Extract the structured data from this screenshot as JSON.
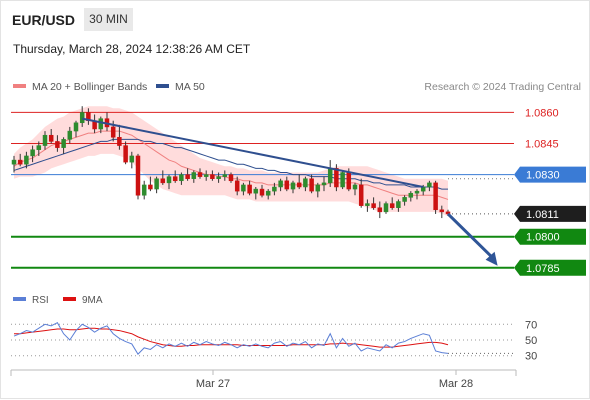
{
  "header": {
    "symbol": "EUR/USD",
    "timeframe": "30 MIN"
  },
  "datetime": "Thursday, March 28, 2024 12:38:26 AM CET",
  "legend": {
    "items": [
      {
        "label": "MA 20 + Bollinger Bands",
        "color": "#f08080"
      },
      {
        "label": "MA 50",
        "color": "#2f4f8f"
      }
    ],
    "credit": "Research © 2024 Trading Central"
  },
  "colors": {
    "bull": "#2e8b2e",
    "bear": "#cc1111",
    "band": "#ffd6d6",
    "ma20": "#f08080",
    "ma50": "#2f4f8f",
    "resistance": "#dd2222",
    "pivot": "#3a7bd5",
    "support": "#118811",
    "trend": "#2f4f8f",
    "arrow": "#2f5597",
    "rsi": "#5b7fd6",
    "rsi_ma": "#dd1111"
  },
  "chart_data": [
    {
      "type": "candlestick",
      "title": "",
      "ylim": [
        1.0782,
        1.0866
      ],
      "y_ticks": [
        1.086,
        1.0845,
        1.083,
        1.0811,
        1.08,
        1.0785
      ],
      "x_ticks": [
        "Mar 27",
        "Mar 28"
      ],
      "current_price": 1.0811,
      "levels": [
        {
          "value": 1.086,
          "label": "1.0860",
          "kind": "resistance"
        },
        {
          "value": 1.0845,
          "label": "1.0845",
          "kind": "resistance"
        },
        {
          "value": 1.083,
          "label": "1.0830",
          "kind": "pivot"
        },
        {
          "value": 1.0811,
          "label": "1.0811",
          "kind": "current"
        },
        {
          "value": 1.08,
          "label": "1.0800",
          "kind": "support"
        },
        {
          "value": 1.0785,
          "label": "1.0785",
          "kind": "support"
        }
      ],
      "candles": [
        [
          1.0835,
          1.0839,
          1.0831,
          1.0837
        ],
        [
          1.0837,
          1.084,
          1.0834,
          1.0835
        ],
        [
          1.0835,
          1.0841,
          1.0833,
          1.0839
        ],
        [
          1.0839,
          1.0844,
          1.0836,
          1.0842
        ],
        [
          1.0842,
          1.0846,
          1.0839,
          1.0844
        ],
        [
          1.0844,
          1.0851,
          1.0842,
          1.0849
        ],
        [
          1.0849,
          1.0852,
          1.0845,
          1.0846
        ],
        [
          1.0846,
          1.0849,
          1.0841,
          1.0843
        ],
        [
          1.0843,
          1.0848,
          1.084,
          1.0847
        ],
        [
          1.0847,
          1.0853,
          1.0845,
          1.0851
        ],
        [
          1.0851,
          1.0856,
          1.0848,
          1.0855
        ],
        [
          1.0855,
          1.0863,
          1.0853,
          1.086
        ],
        [
          1.086,
          1.0862,
          1.0854,
          1.0856
        ],
        [
          1.0856,
          1.0859,
          1.085,
          1.0852
        ],
        [
          1.0852,
          1.0858,
          1.085,
          1.0857
        ],
        [
          1.0857,
          1.086,
          1.0851,
          1.0853
        ],
        [
          1.0853,
          1.0856,
          1.0846,
          1.0848
        ],
        [
          1.0848,
          1.0854,
          1.0842,
          1.0844
        ],
        [
          1.0844,
          1.0846,
          1.0835,
          1.0836
        ],
        [
          1.0836,
          1.0841,
          1.0833,
          1.0839
        ],
        [
          1.0839,
          1.084,
          1.0818,
          1.082
        ],
        [
          1.082,
          1.0827,
          1.0818,
          1.0825
        ],
        [
          1.0825,
          1.0829,
          1.0822,
          1.0823
        ],
        [
          1.0823,
          1.0829,
          1.0821,
          1.0828
        ],
        [
          1.0828,
          1.0832,
          1.0825,
          1.0826
        ],
        [
          1.0826,
          1.083,
          1.0823,
          1.0829
        ],
        [
          1.0829,
          1.0832,
          1.0826,
          1.0827
        ],
        [
          1.0827,
          1.0831,
          1.0825,
          1.083
        ],
        [
          1.083,
          1.0833,
          1.0827,
          1.0828
        ],
        [
          1.0828,
          1.0832,
          1.0826,
          1.0831
        ],
        [
          1.0831,
          1.0833,
          1.0828,
          1.0829
        ],
        [
          1.0829,
          1.0832,
          1.0827,
          1.083
        ],
        [
          1.083,
          1.0832,
          1.0827,
          1.0828
        ],
        [
          1.0828,
          1.0831,
          1.0826,
          1.0829
        ],
        [
          1.0829,
          1.0832,
          1.0827,
          1.083
        ],
        [
          1.083,
          1.0831,
          1.0826,
          1.0827
        ],
        [
          1.0827,
          1.0829,
          1.082,
          1.0822
        ],
        [
          1.0822,
          1.0826,
          1.082,
          1.0825
        ],
        [
          1.0825,
          1.0827,
          1.082,
          1.0821
        ],
        [
          1.0821,
          1.0824,
          1.0818,
          1.0823
        ],
        [
          1.0823,
          1.0825,
          1.0819,
          1.082
        ],
        [
          1.082,
          1.0823,
          1.0818,
          1.0822
        ],
        [
          1.0822,
          1.0826,
          1.082,
          1.0824
        ],
        [
          1.0824,
          1.0828,
          1.0822,
          1.0827
        ],
        [
          1.0827,
          1.0829,
          1.0822,
          1.0823
        ],
        [
          1.0823,
          1.0827,
          1.0821,
          1.0826
        ],
        [
          1.0826,
          1.083,
          1.0823,
          1.0824
        ],
        [
          1.0824,
          1.0829,
          1.0822,
          1.0828
        ],
        [
          1.0828,
          1.083,
          1.0821,
          1.0822
        ],
        [
          1.0822,
          1.0826,
          1.0819,
          1.0825
        ],
        [
          1.0825,
          1.0829,
          1.0822,
          1.0826
        ],
        [
          1.0826,
          1.0837,
          1.0824,
          1.0833
        ],
        [
          1.0833,
          1.0835,
          1.0822,
          1.0824
        ],
        [
          1.0824,
          1.0832,
          1.0823,
          1.0831
        ],
        [
          1.0831,
          1.0833,
          1.0822,
          1.0823
        ],
        [
          1.0823,
          1.0826,
          1.082,
          1.0825
        ],
        [
          1.0825,
          1.0828,
          1.0814,
          1.0815
        ],
        [
          1.0815,
          1.0818,
          1.0812,
          1.0816
        ],
        [
          1.0816,
          1.0819,
          1.0813,
          1.0814
        ],
        [
          1.0814,
          1.0817,
          1.0809,
          1.0812
        ],
        [
          1.0812,
          1.0817,
          1.0811,
          1.0816
        ],
        [
          1.0816,
          1.0819,
          1.0813,
          1.0814
        ],
        [
          1.0814,
          1.0818,
          1.0812,
          1.0817
        ],
        [
          1.0817,
          1.082,
          1.0815,
          1.0819
        ],
        [
          1.0819,
          1.0822,
          1.0817,
          1.0821
        ],
        [
          1.0821,
          1.0823,
          1.0818,
          1.0822
        ],
        [
          1.0822,
          1.0825,
          1.082,
          1.0824
        ],
        [
          1.0824,
          1.0827,
          1.0822,
          1.0826
        ],
        [
          1.0826,
          1.0827,
          1.0811,
          1.0813
        ],
        [
          1.0813,
          1.0815,
          1.0809,
          1.0812
        ],
        [
          1.0812,
          1.0813,
          1.081,
          1.0811
        ]
      ],
      "ma20": [
        1.0834,
        1.0836,
        1.0837,
        1.0838,
        1.084,
        1.0842,
        1.0844,
        1.0845,
        1.0846,
        1.0847,
        1.0848,
        1.0849,
        1.085,
        1.085,
        1.0851,
        1.0851,
        1.0851,
        1.0851,
        1.085,
        1.0849,
        1.0847,
        1.0845,
        1.0843,
        1.0841,
        1.0839,
        1.0837,
        1.0836,
        1.0834,
        1.0833,
        1.0832,
        1.0831,
        1.083,
        1.083,
        1.0829,
        1.0829,
        1.0828,
        1.0828,
        1.0827,
        1.0827,
        1.0826,
        1.0826,
        1.0825,
        1.0825,
        1.0825,
        1.0825,
        1.0825,
        1.0825,
        1.0825,
        1.0825,
        1.0825,
        1.0825,
        1.0826,
        1.0826,
        1.0826,
        1.0826,
        1.0826,
        1.0825,
        1.0825,
        1.0824,
        1.0823,
        1.0822,
        1.0821,
        1.082,
        1.082,
        1.082,
        1.082,
        1.082,
        1.082,
        1.082,
        1.0819,
        1.0818
      ],
      "bb_upper": [
        1.084,
        1.0843,
        1.0845,
        1.0847,
        1.085,
        1.0853,
        1.0855,
        1.0857,
        1.0858,
        1.086,
        1.0861,
        1.0862,
        1.0863,
        1.0863,
        1.0863,
        1.0863,
        1.0862,
        1.0862,
        1.0861,
        1.086,
        1.0858,
        1.0856,
        1.0854,
        1.0852,
        1.085,
        1.0848,
        1.0846,
        1.0844,
        1.0842,
        1.084,
        1.0838,
        1.0837,
        1.0836,
        1.0835,
        1.0834,
        1.0834,
        1.0833,
        1.0833,
        1.0832,
        1.0832,
        1.0832,
        1.0831,
        1.0831,
        1.0831,
        1.0831,
        1.0831,
        1.0831,
        1.0831,
        1.0831,
        1.0831,
        1.0832,
        1.0833,
        1.0834,
        1.0834,
        1.0834,
        1.0834,
        1.0834,
        1.0834,
        1.0833,
        1.0832,
        1.0831,
        1.083,
        1.0829,
        1.0828,
        1.0828,
        1.0828,
        1.0828,
        1.0828,
        1.0828,
        1.0828,
        1.0827
      ],
      "bb_lower": [
        1.0828,
        1.0829,
        1.0829,
        1.0829,
        1.083,
        1.0831,
        1.0833,
        1.0834,
        1.0835,
        1.0836,
        1.0837,
        1.0838,
        1.0839,
        1.0839,
        1.084,
        1.084,
        1.084,
        1.0839,
        1.0838,
        1.0836,
        1.0833,
        1.083,
        1.0827,
        1.0825,
        1.0823,
        1.0822,
        1.0821,
        1.082,
        1.082,
        1.082,
        1.082,
        1.082,
        1.082,
        1.082,
        1.082,
        1.0819,
        1.0818,
        1.0818,
        1.0818,
        1.0817,
        1.0817,
        1.0817,
        1.0817,
        1.0817,
        1.0817,
        1.0817,
        1.0817,
        1.0817,
        1.0817,
        1.0817,
        1.0817,
        1.0817,
        1.0817,
        1.0817,
        1.0817,
        1.0816,
        1.0815,
        1.0814,
        1.0813,
        1.0812,
        1.0812,
        1.0812,
        1.0812,
        1.0812,
        1.0812,
        1.0812,
        1.0812,
        1.0812,
        1.0812,
        1.0811,
        1.081
      ],
      "ma50": [
        1.0832,
        1.0833,
        1.0834,
        1.0835,
        1.0836,
        1.0837,
        1.0838,
        1.0839,
        1.084,
        1.0841,
        1.0842,
        1.0843,
        1.0844,
        1.0845,
        1.0846,
        1.0846,
        1.0847,
        1.0847,
        1.0847,
        1.0847,
        1.0847,
        1.0846,
        1.0846,
        1.0845,
        1.0845,
        1.0844,
        1.0843,
        1.0843,
        1.0842,
        1.0841,
        1.084,
        1.0839,
        1.0838,
        1.0837,
        1.0837,
        1.0836,
        1.0835,
        1.0835,
        1.0834,
        1.0833,
        1.0833,
        1.0832,
        1.0832,
        1.0831,
        1.0831,
        1.083,
        1.083,
        1.083,
        1.0829,
        1.0829,
        1.0829,
        1.0829,
        1.0828,
        1.0828,
        1.0828,
        1.0828,
        1.0827,
        1.0827,
        1.0826,
        1.0826,
        1.0825,
        1.0825,
        1.0825,
        1.0825,
        1.0824,
        1.0824,
        1.0824,
        1.0824,
        1.0824,
        1.0823,
        1.0823
      ],
      "trendline": {
        "from": [
          11,
          1.0857
        ],
        "to": [
          66,
          1.0824
        ]
      },
      "forecast_arrow": {
        "from": [
          70,
          1.0811
        ],
        "to": [
          78,
          1.0786
        ]
      }
    },
    {
      "type": "line",
      "title": "",
      "legend": [
        "RSI",
        "9MA"
      ],
      "ylim": [
        22,
        78
      ],
      "y_ticks": [
        70,
        50,
        30
      ],
      "series": [
        {
          "name": "RSI",
          "values": [
            55,
            58,
            62,
            60,
            65,
            70,
            68,
            72,
            58,
            50,
            62,
            70,
            66,
            60,
            65,
            68,
            58,
            52,
            48,
            45,
            32,
            40,
            38,
            44,
            40,
            45,
            42,
            46,
            42,
            47,
            44,
            48,
            45,
            43,
            47,
            44,
            40,
            44,
            42,
            45,
            42,
            40,
            46,
            48,
            42,
            46,
            44,
            48,
            40,
            45,
            43,
            58,
            40,
            52,
            42,
            46,
            36,
            40,
            38,
            36,
            44,
            40,
            46,
            48,
            52,
            55,
            58,
            56,
            36,
            34,
            33
          ]
        },
        {
          "name": "9MA",
          "values": [
            58,
            58,
            59,
            60,
            61,
            62,
            63,
            64,
            64,
            63,
            63,
            64,
            65,
            65,
            64,
            64,
            63,
            62,
            60,
            58,
            54,
            51,
            48,
            46,
            44,
            43,
            42,
            42,
            43,
            43,
            44,
            44,
            44,
            44,
            44,
            44,
            44,
            43,
            43,
            43,
            43,
            43,
            43,
            43,
            43,
            44,
            44,
            44,
            44,
            44,
            44,
            45,
            45,
            46,
            45,
            45,
            44,
            43,
            42,
            41,
            41,
            41,
            42,
            43,
            44,
            45,
            46,
            47,
            47,
            46,
            44
          ]
        }
      ]
    }
  ]
}
